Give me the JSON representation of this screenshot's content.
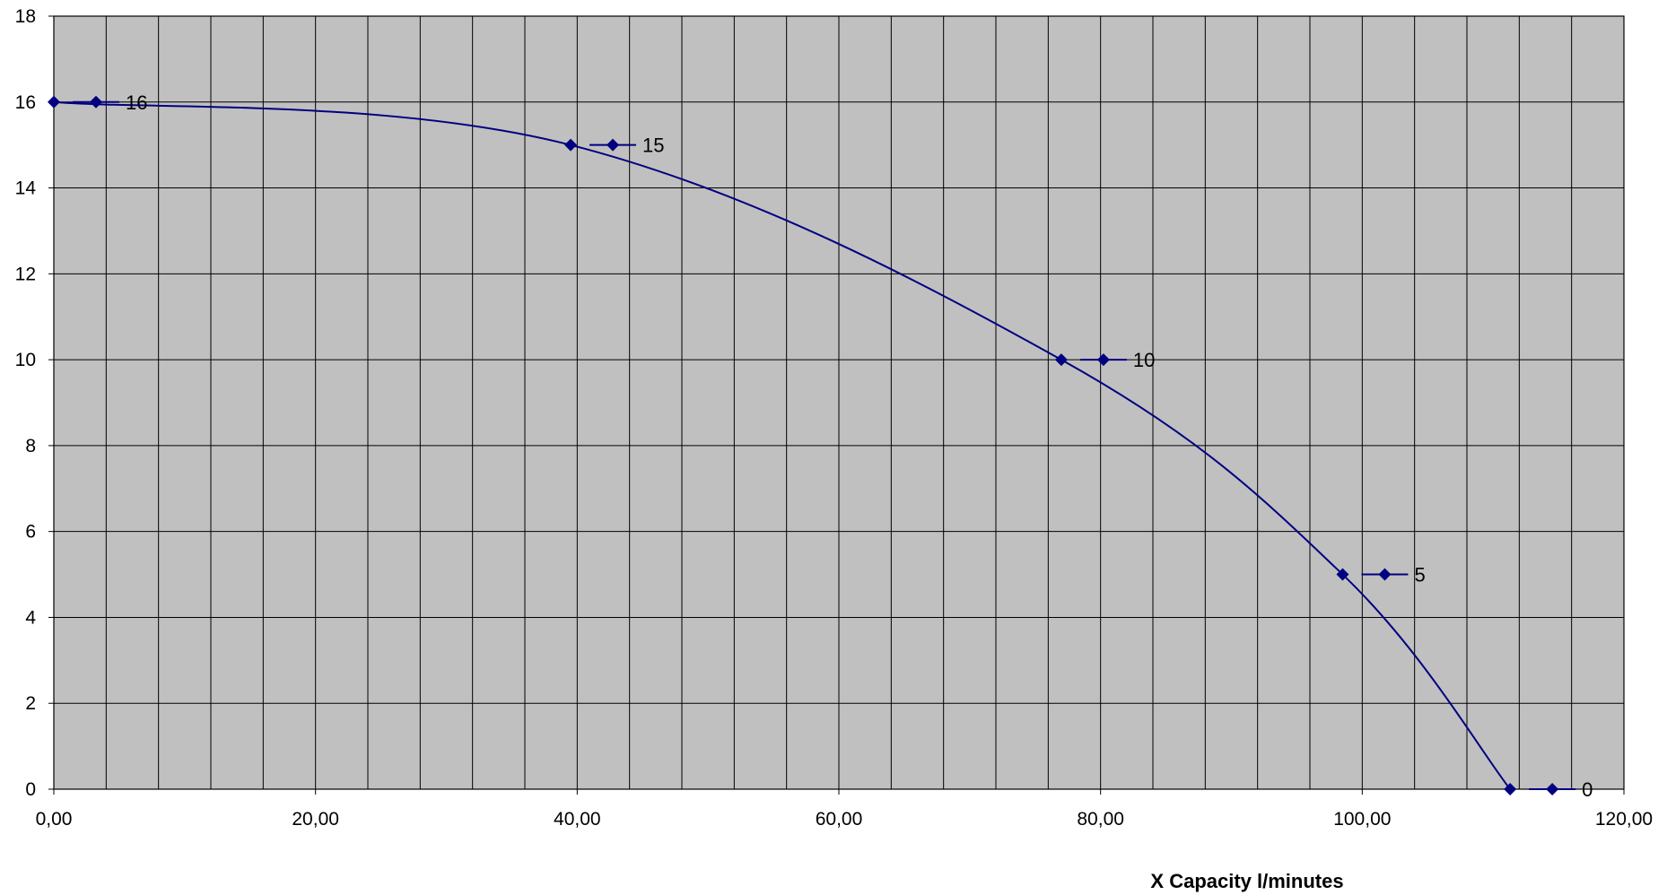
{
  "chart_data": {
    "type": "line",
    "xlabel": "X  Capacity  l/minutes",
    "ylabel": "",
    "xlim": [
      0,
      120
    ],
    "ylim": [
      0,
      18
    ],
    "x_ticks": [
      "0,00",
      "20,00",
      "40,00",
      "60,00",
      "80,00",
      "100,00",
      "120,00"
    ],
    "y_ticks": [
      "0",
      "2",
      "4",
      "6",
      "8",
      "10",
      "12",
      "14",
      "16",
      "18"
    ],
    "grid": true,
    "x_minor_step": 4,
    "background_color": "#c0c0c0",
    "series": [
      {
        "color": "#000080",
        "marker": "diamond",
        "points": [
          {
            "x": 0,
            "y": 16,
            "label": "16"
          },
          {
            "x": 39.5,
            "y": 15,
            "label": "15"
          },
          {
            "x": 77,
            "y": 10,
            "label": "10"
          },
          {
            "x": 98.5,
            "y": 5,
            "label": "5"
          },
          {
            "x": 111.3,
            "y": 0,
            "label": "0"
          }
        ]
      }
    ]
  }
}
